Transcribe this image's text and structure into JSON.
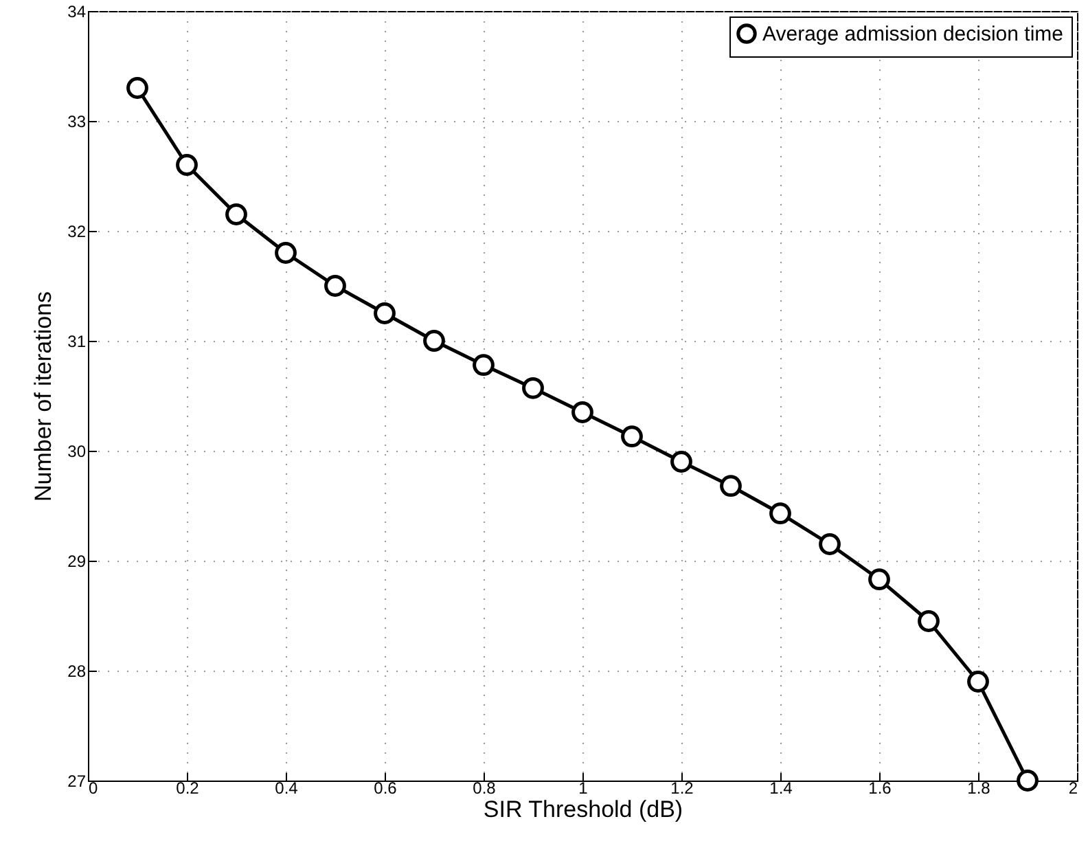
{
  "chart_data": {
    "type": "line",
    "xlabel": "SIR Threshold (dB)",
    "ylabel": "Number of iterations",
    "x": [
      0.1,
      0.2,
      0.3,
      0.4,
      0.5,
      0.6,
      0.7,
      0.8,
      0.9,
      1.0,
      1.1,
      1.2,
      1.3,
      1.4,
      1.5,
      1.6,
      1.7,
      1.8,
      1.9
    ],
    "series": [
      {
        "name": "Average admission decision time",
        "color": "#000000",
        "values": [
          33.3,
          32.6,
          32.15,
          31.8,
          31.5,
          31.25,
          31.0,
          30.78,
          30.57,
          30.35,
          30.13,
          29.9,
          29.68,
          29.43,
          29.15,
          28.83,
          28.45,
          27.9,
          27.0
        ]
      }
    ],
    "xlim": [
      0,
      2
    ],
    "xticks": [
      0,
      0.2,
      0.4,
      0.6,
      0.8,
      1,
      1.2,
      1.4,
      1.6,
      1.8,
      2
    ],
    "ylim": [
      27,
      34
    ],
    "yticks": [
      27,
      28,
      29,
      30,
      31,
      32,
      33,
      34
    ],
    "grid": true,
    "legend": "top right",
    "marker": "circle",
    "line_style": "solid"
  }
}
